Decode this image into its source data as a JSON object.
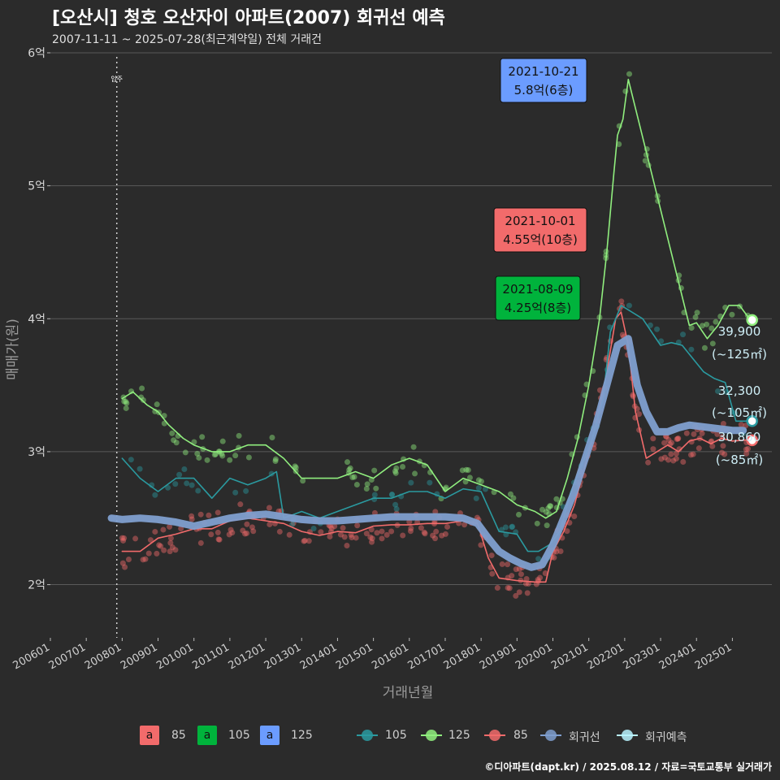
{
  "header": {
    "title": "[오산시] 청호 오산자이 아파트(2007) 회귀선 예측",
    "subtitle": "2007-11-11 ~ 2025-07-28(최근계약일) 전체 거래건"
  },
  "caption": "©디아파트(dapt.kr) / 2025.08.12 / 자료=국토교통부 실거래가",
  "colors": {
    "s85": "#f26b6b",
    "s105": "#2a9aa0",
    "s125": "#90ee7e",
    "regression": "#7f9fcf",
    "forecast": "#b9f3ff",
    "box105": "#00b33c",
    "box125": "#6b9cff",
    "grid": "#5a5a5a"
  },
  "chart_data": {
    "type": "line",
    "title": "[오산시] 청호 오산자이 아파트(2007) 회귀선 예측",
    "xlabel": "거래년월",
    "ylabel": "매매가(원)",
    "ylim": [
      1.6,
      6.0
    ],
    "xlim": [
      2006.0,
      2026.1
    ],
    "yticks": [
      2,
      3,
      4,
      5,
      6
    ],
    "ytick_labels": [
      "2억",
      "3억",
      "4억",
      "5억",
      "6억"
    ],
    "xtick_labels": [
      "200601",
      "200701",
      "200801",
      "200901",
      "201001",
      "201101",
      "201201",
      "201301",
      "201401",
      "201501",
      "201601",
      "201701",
      "201801",
      "201901",
      "202001",
      "202101",
      "202201",
      "202301",
      "202401",
      "202501"
    ],
    "move_in": {
      "x": 2007.85,
      "label": "입주"
    },
    "series": [
      {
        "name": "85",
        "color_key": "s85",
        "x": [
          2008.0,
          2008.5,
          2009.0,
          2009.5,
          2010.0,
          2010.5,
          2011.0,
          2011.5,
          2012.0,
          2012.5,
          2013.0,
          2013.5,
          2014.0,
          2014.5,
          2015.0,
          2015.5,
          2016.0,
          2016.5,
          2017.0,
          2017.5,
          2017.9,
          2018.2,
          2018.5,
          2019.0,
          2019.5,
          2019.8,
          2020.0,
          2020.3,
          2020.6,
          2020.9,
          2021.2,
          2021.5,
          2021.75,
          2021.9,
          2022.1,
          2022.3,
          2022.6,
          2022.9,
          2023.2,
          2023.5,
          2023.8,
          2024.1,
          2024.4,
          2024.7,
          2025.0,
          2025.5
        ],
        "y": [
          2.25,
          2.25,
          2.35,
          2.38,
          2.42,
          2.42,
          2.48,
          2.5,
          2.48,
          2.46,
          2.4,
          2.37,
          2.4,
          2.39,
          2.44,
          2.45,
          2.45,
          2.46,
          2.46,
          2.48,
          2.46,
          2.2,
          2.05,
          2.03,
          2.02,
          2.02,
          2.25,
          2.4,
          2.6,
          2.9,
          3.2,
          3.6,
          4.0,
          4.05,
          3.8,
          3.3,
          2.95,
          3.0,
          3.05,
          3.0,
          3.08,
          3.1,
          3.06,
          3.1,
          3.08,
          3.09
        ]
      },
      {
        "name": "105",
        "color_key": "s105",
        "x": [
          2008.0,
          2008.5,
          2009.0,
          2009.5,
          2010.0,
          2010.5,
          2011.0,
          2011.5,
          2012.0,
          2012.3,
          2012.5,
          2013.0,
          2013.5,
          2014.0,
          2014.5,
          2015.0,
          2015.5,
          2016.0,
          2016.5,
          2017.0,
          2017.5,
          2018.0,
          2018.5,
          2019.0,
          2019.3,
          2019.6,
          2019.9,
          2020.2,
          2020.5,
          2020.8,
          2021.1,
          2021.4,
          2021.6,
          2021.9,
          2022.5,
          2023.0,
          2023.3,
          2023.6,
          2023.9,
          2024.2,
          2024.5,
          2024.8,
          2025.1,
          2025.4
        ],
        "y": [
          2.95,
          2.8,
          2.7,
          2.8,
          2.8,
          2.65,
          2.8,
          2.75,
          2.8,
          2.85,
          2.5,
          2.55,
          2.5,
          2.55,
          2.6,
          2.65,
          2.65,
          2.7,
          2.7,
          2.65,
          2.72,
          2.7,
          2.4,
          2.38,
          2.25,
          2.25,
          2.3,
          2.4,
          2.7,
          2.9,
          3.1,
          3.4,
          3.9,
          4.1,
          4.0,
          3.8,
          3.82,
          3.8,
          3.7,
          3.6,
          3.55,
          3.52,
          3.23,
          3.23
        ]
      },
      {
        "name": "125",
        "color_key": "s125",
        "x": [
          2008.0,
          2008.3,
          2008.7,
          2009.0,
          2009.3,
          2009.7,
          2010.0,
          2010.5,
          2011.0,
          2011.5,
          2012.0,
          2012.5,
          2013.0,
          2013.5,
          2014.0,
          2014.5,
          2015.0,
          2015.5,
          2016.0,
          2016.5,
          2017.0,
          2017.5,
          2018.0,
          2018.5,
          2019.0,
          2019.5,
          2019.8,
          2020.1,
          2020.4,
          2020.7,
          2021.0,
          2021.3,
          2021.5,
          2021.7,
          2021.8,
          2021.95,
          2022.1,
          2023.8,
          2024.0,
          2024.3,
          2024.6,
          2024.9,
          2025.2,
          2025.5
        ],
        "y": [
          3.4,
          3.45,
          3.35,
          3.3,
          3.2,
          3.1,
          3.05,
          3.0,
          3.0,
          3.05,
          3.05,
          2.95,
          2.8,
          2.8,
          2.8,
          2.85,
          2.8,
          2.9,
          2.95,
          2.9,
          2.7,
          2.8,
          2.75,
          2.7,
          2.6,
          2.55,
          2.5,
          2.55,
          2.8,
          3.1,
          3.5,
          4.0,
          4.5,
          5.1,
          5.38,
          5.5,
          5.8,
          3.95,
          3.97,
          3.85,
          3.95,
          4.1,
          4.1,
          3.99
        ]
      },
      {
        "name": "회귀선",
        "color_key": "regression",
        "x": [
          2007.7,
          2008.0,
          2008.5,
          2009.0,
          2009.5,
          2010.0,
          2010.5,
          2011.0,
          2011.5,
          2012.0,
          2012.5,
          2013.0,
          2013.5,
          2014.0,
          2014.5,
          2015.0,
          2015.5,
          2016.0,
          2016.5,
          2017.0,
          2017.5,
          2017.9,
          2018.2,
          2018.5,
          2018.8,
          2019.1,
          2019.4,
          2019.7,
          2020.0,
          2020.3,
          2020.6,
          2020.9,
          2021.2,
          2021.5,
          2021.8,
          2022.1,
          2022.35,
          2022.6,
          2022.9,
          2023.2,
          2023.5,
          2023.8,
          2024.1,
          2024.4,
          2024.7,
          2025.0,
          2025.3
        ],
        "y": [
          2.5,
          2.49,
          2.5,
          2.49,
          2.47,
          2.44,
          2.47,
          2.5,
          2.52,
          2.53,
          2.51,
          2.49,
          2.48,
          2.48,
          2.49,
          2.5,
          2.51,
          2.51,
          2.51,
          2.51,
          2.5,
          2.46,
          2.35,
          2.25,
          2.2,
          2.16,
          2.13,
          2.15,
          2.3,
          2.5,
          2.7,
          2.95,
          3.2,
          3.5,
          3.8,
          3.85,
          3.5,
          3.3,
          3.15,
          3.15,
          3.18,
          3.2,
          3.19,
          3.18,
          3.17,
          3.16,
          3.16
        ]
      }
    ],
    "forecast_points": [
      {
        "size": "125",
        "x": 2025.55,
        "y": 3.99,
        "value_label": "39,900",
        "area_label": "(~125㎡)"
      },
      {
        "size": "105",
        "x": 2025.55,
        "y": 3.23,
        "value_label": "32,300",
        "area_label": "(~105㎡)"
      },
      {
        "size": "85",
        "x": 2025.55,
        "y": 3.086,
        "value_label": "30,860",
        "area_label": "(~85㎡)"
      }
    ],
    "annotations": [
      {
        "date": "2021-10-21",
        "price": "5.8억(6층)",
        "size": "125",
        "x": 2021.05,
        "y": 5.8
      },
      {
        "date": "2021-10-01",
        "price": "4.55억(10층)",
        "size": "85",
        "x": 2021.05,
        "y": 4.55
      },
      {
        "date": "2021-08-09",
        "price": "4.25억(8층)",
        "size": "105",
        "x": 2021.05,
        "y": 4.25
      }
    ]
  },
  "legend": {
    "box_letter": "a",
    "boxes": [
      {
        "label": "85",
        "color_key": "s85"
      },
      {
        "label": "105",
        "color_key": "box105"
      },
      {
        "label": "125",
        "color_key": "box125"
      }
    ],
    "lines": [
      {
        "label": "105",
        "color_key": "s105"
      },
      {
        "label": "125",
        "color_key": "s125"
      },
      {
        "label": "85",
        "color_key": "s85"
      },
      {
        "label": "회귀선",
        "color_key": "regression"
      },
      {
        "label": "회귀예측",
        "color_key": "forecast"
      }
    ]
  }
}
